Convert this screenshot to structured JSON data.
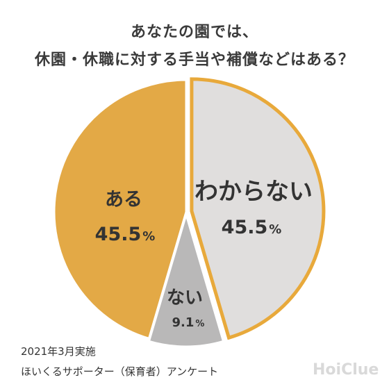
{
  "title": {
    "line1": "あなたの園では、",
    "line2": "休園・休職に対する手当や補償などはある？"
  },
  "chart_data": {
    "type": "pie",
    "slices": [
      {
        "label": "わからない",
        "value": 45.5,
        "pct_text": "45.5",
        "color": "#e0dedd",
        "stroke": "#e8a93b"
      },
      {
        "label": "ない",
        "value": 9.1,
        "pct_text": "9.1",
        "color": "#b9b8b8",
        "stroke": "#ffffff"
      },
      {
        "label": "ある",
        "value": 45.5,
        "pct_text": "45.5",
        "color": "#e3a946",
        "stroke": "#ffffff"
      }
    ],
    "percent_sign": "%",
    "start": "top",
    "direction": "clockwise"
  },
  "footer": {
    "line1": "2021年3月実施",
    "line2": "ほいくるサポーター（保育者）アンケート"
  },
  "logo": {
    "text": "HoiClue"
  }
}
